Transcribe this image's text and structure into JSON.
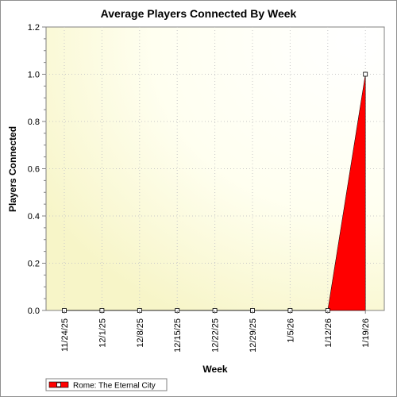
{
  "chart_data": {
    "type": "area",
    "title": "Average Players Connected By Week",
    "xlabel": "Week",
    "ylabel": "Players Connected",
    "categories": [
      "11/24/25",
      "12/1/25",
      "12/8/25",
      "12/15/25",
      "12/22/25",
      "12/29/25",
      "1/5/26",
      "1/12/26",
      "1/19/26"
    ],
    "series": [
      {
        "name": "Rome: The Eternal City",
        "values": [
          0,
          0,
          0,
          0,
          0,
          0,
          0,
          0,
          1.0
        ],
        "color": "#ff0000"
      }
    ],
    "ylim": [
      0,
      1.2
    ],
    "yticks": [
      "0.0",
      "0.2",
      "0.4",
      "0.6",
      "0.8",
      "1.0",
      "1.2"
    ],
    "grid": true,
    "legend_position": "bottom-left",
    "plot_background": "#fffff0"
  }
}
